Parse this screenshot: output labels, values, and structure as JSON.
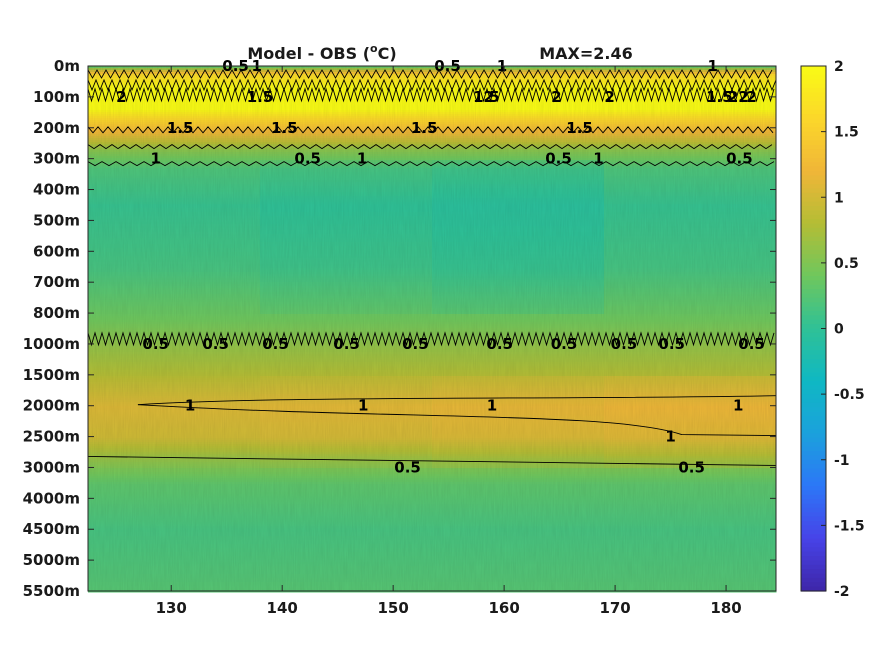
{
  "chart_data": {
    "type": "heatmap",
    "title": "Model - OBS (",
    "title_super": "o",
    "title_unit": "C)",
    "max_label": "MAX=2.46",
    "xlabel": "",
    "ylabel": "",
    "xlim": [
      122.5,
      184.5
    ],
    "x_ticks": [
      130,
      140,
      150,
      160,
      170,
      180
    ],
    "y_ticks": [
      "0m",
      "100m",
      "200m",
      "300m",
      "400m",
      "500m",
      "600m",
      "700m",
      "800m",
      "1000m",
      "1500m",
      "2000m",
      "2500m",
      "3000m",
      "4000m",
      "4500m",
      "5000m",
      "5500m"
    ],
    "colorbar": {
      "range": [
        -2,
        2
      ],
      "ticks": [
        2,
        1.5,
        1,
        0.5,
        0,
        -0.5,
        -1,
        -1.5,
        -2
      ],
      "tick_labels": [
        "2",
        "1.5",
        "1",
        "0.5",
        "0",
        "-0.5",
        "-1",
        "-1.5",
        "-2"
      ],
      "colormap": "parula",
      "colors": [
        "#3e26a8",
        "#4743e8",
        "#2c77f7",
        "#1ba1dc",
        "#0fb8c3",
        "#2fc196",
        "#6fc75d",
        "#b4bd35",
        "#f0b638",
        "#fbd72a",
        "#f9fb15"
      ]
    },
    "contour_levels": [
      0.5,
      1,
      1.5,
      2
    ],
    "contour_labels": [
      {
        "x": 125.5,
        "depth": "100m",
        "label": "2"
      },
      {
        "x": 135.8,
        "depth": "0m",
        "label": "0.5"
      },
      {
        "x": 137.7,
        "depth": "0m",
        "label": "1"
      },
      {
        "x": 138.0,
        "depth": "100m",
        "label": "1.5"
      },
      {
        "x": 130.8,
        "depth": "200m",
        "label": "1.5"
      },
      {
        "x": 140.2,
        "depth": "200m",
        "label": "1.5"
      },
      {
        "x": 128.6,
        "depth": "300m",
        "label": "1"
      },
      {
        "x": 154.9,
        "depth": "0m",
        "label": "0.5"
      },
      {
        "x": 158.4,
        "depth": "100m",
        "label": "1.5"
      },
      {
        "x": 159.8,
        "depth": "0m",
        "label": "1"
      },
      {
        "x": 158.6,
        "depth": "100m",
        "label": "2"
      },
      {
        "x": 152.8,
        "depth": "200m",
        "label": "1.5"
      },
      {
        "x": 147.2,
        "depth": "300m",
        "label": "1"
      },
      {
        "x": 142.3,
        "depth": "300m",
        "label": "0.5"
      },
      {
        "x": 164.9,
        "depth": "300m",
        "label": "0.5"
      },
      {
        "x": 164.7,
        "depth": "100m",
        "label": "2"
      },
      {
        "x": 169.5,
        "depth": "100m",
        "label": "2"
      },
      {
        "x": 166.8,
        "depth": "200m",
        "label": "1.5"
      },
      {
        "x": 168.5,
        "depth": "300m",
        "label": "1"
      },
      {
        "x": 178.8,
        "depth": "0m",
        "label": "1"
      },
      {
        "x": 179.4,
        "depth": "100m",
        "label": "1.5"
      },
      {
        "x": 181.1,
        "depth": "100m",
        "label": "22"
      },
      {
        "x": 182.3,
        "depth": "100m",
        "label": "2"
      },
      {
        "x": 181.2,
        "depth": "300m",
        "label": "0.5"
      },
      {
        "x": 128.6,
        "depth": "1000m",
        "label": "0.5"
      },
      {
        "x": 134.0,
        "depth": "1000m",
        "label": "0.5"
      },
      {
        "x": 139.4,
        "depth": "1000m",
        "label": "0.5"
      },
      {
        "x": 145.8,
        "depth": "1000m",
        "label": "0.5"
      },
      {
        "x": 152.0,
        "depth": "1000m",
        "label": "0.5"
      },
      {
        "x": 159.6,
        "depth": "1000m",
        "label": "0.5"
      },
      {
        "x": 165.4,
        "depth": "1000m",
        "label": "0.5"
      },
      {
        "x": 170.8,
        "depth": "1000m",
        "label": "0.5"
      },
      {
        "x": 175.1,
        "depth": "1000m",
        "label": "0.5"
      },
      {
        "x": 182.3,
        "depth": "1000m",
        "label": "0.5"
      },
      {
        "x": 131.7,
        "depth": "2000m",
        "label": "1"
      },
      {
        "x": 147.3,
        "depth": "2000m",
        "label": "1"
      },
      {
        "x": 158.9,
        "depth": "2000m",
        "label": "1"
      },
      {
        "x": 181.1,
        "depth": "2000m",
        "label": "1"
      },
      {
        "x": 175.0,
        "depth": "2500m",
        "label": "1"
      },
      {
        "x": 151.3,
        "depth": "3000m",
        "label": "0.5"
      },
      {
        "x": 176.9,
        "depth": "3000m",
        "label": "0.5"
      }
    ]
  }
}
